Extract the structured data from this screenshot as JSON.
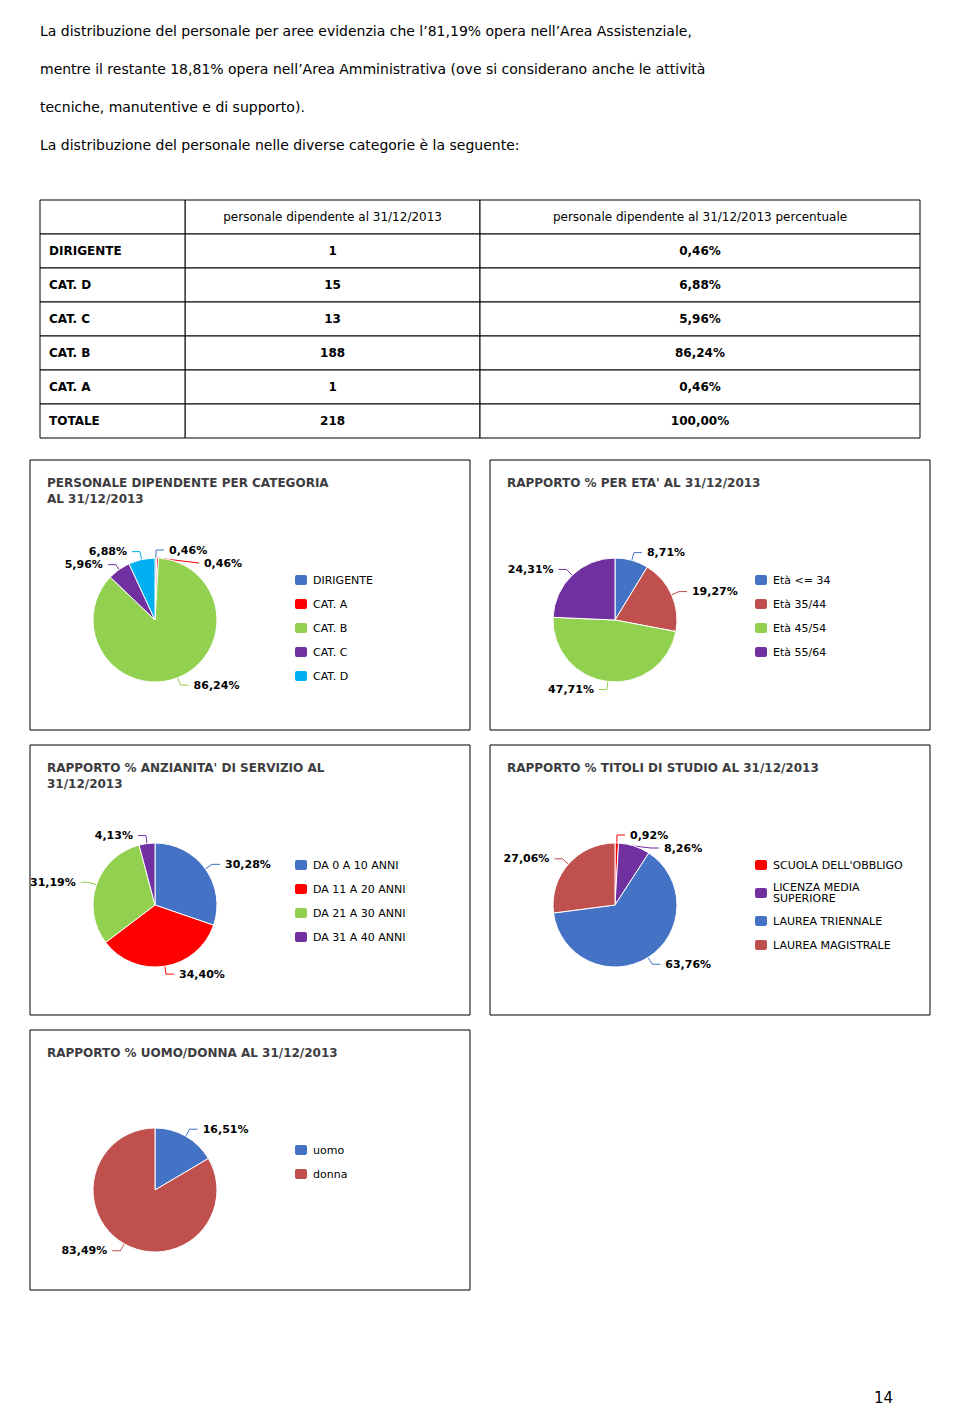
{
  "annotations": [
    "La distribuzione del personale per aree evidenzia che l’81,19% opera nell’Area Assistenziale,",
    "mentre il restante 18,81% opera nell’Area Amministrativa (ove si considerano anche le attività",
    "tecniche, manutentive e di supporto).",
    "La distribuzione del personale nelle diverse categorie è la seguente:"
  ],
  "table": {
    "columns": [
      null,
      "personale dipendente al 31/12/2013",
      "personale dipendente al 31/12/2013 percentuale"
    ],
    "rows": [
      [
        "DIRIGENTE",
        "1",
        "0,46%"
      ],
      [
        "CAT. D",
        "15",
        "6,88%"
      ],
      [
        "CAT. C",
        "13",
        "5,96%"
      ],
      [
        "CAT. B",
        "188",
        "86,24%"
      ],
      [
        "CAT. A",
        "1",
        "0,46%"
      ],
      [
        "TOTALE",
        "218",
        "100,00%"
      ]
    ]
  },
  "page_number": "14",
  "chart_data": [
    {
      "type": "pie",
      "title": "PERSONALE DIPENDENTE PER CATEGORIA\nAL 31/12/2013",
      "categories": [
        "DIRIGENTE",
        "CAT. A",
        "CAT. B",
        "CAT. C",
        "CAT. D"
      ],
      "values": [
        0.46,
        0.46,
        86.24,
        5.96,
        6.88
      ],
      "value_labels": [
        "0,46%",
        "0,46%",
        "86,24%",
        "5,96%",
        "6,88%"
      ],
      "colors": [
        "#4472C4",
        "#FF0000",
        "#92D050",
        "#7030A0",
        "#00B0F0"
      ],
      "legend": "right",
      "data_labels": true
    },
    {
      "type": "pie",
      "title": "RAPPORTO % PER ETA' AL 31/12/2013",
      "categories": [
        "Età <= 34",
        "Età 35/44",
        "Età 45/54",
        "Età 55/64"
      ],
      "values": [
        8.71,
        19.27,
        47.71,
        24.31
      ],
      "value_labels": [
        "8,71%",
        "19,27%",
        "47,71%",
        "24,31%"
      ],
      "colors": [
        "#4472C4",
        "#C0504D",
        "#92D050",
        "#7030A0"
      ],
      "legend": "right",
      "data_labels": true
    },
    {
      "type": "pie",
      "title": "RAPPORTO % ANZIANITA' DI SERVIZIO AL\n31/12/2013",
      "categories": [
        "DA 0 A 10 ANNI",
        "DA 11 A 20 ANNI",
        "DA 21 A 30 ANNI",
        "DA 31 A 40 ANNI"
      ],
      "values": [
        30.28,
        34.4,
        31.19,
        4.13
      ],
      "value_labels": [
        "30,28%",
        "34,40%",
        "31,19%",
        "4,13%"
      ],
      "colors": [
        "#4472C4",
        "#FF0000",
        "#92D050",
        "#7030A0"
      ],
      "legend": "right",
      "data_labels": true
    },
    {
      "type": "pie",
      "title": "RAPPORTO % TITOLI DI STUDIO AL 31/12/2013",
      "categories": [
        "SCUOLA DELL'OBBLIGO",
        "LICENZA MEDIA\nSUPERIORE",
        "LAUREA TRIENNALE",
        "LAUREA MAGISTRALE"
      ],
      "values": [
        0.92,
        8.26,
        63.76,
        27.06
      ],
      "value_labels": [
        "0,92%",
        "8,26%",
        "63,76%",
        "27,06%"
      ],
      "colors": [
        "#FF0000",
        "#7030A0",
        "#4472C4",
        "#C0504D"
      ],
      "legend": "right",
      "data_labels": true
    },
    {
      "type": "pie",
      "title": "RAPPORTO % UOMO/DONNA AL 31/12/2013",
      "categories": [
        "uomo",
        "donna"
      ],
      "values": [
        16.51,
        83.49
      ],
      "value_labels": [
        "16,51%",
        "83,49%"
      ],
      "colors": [
        "#4472C4",
        "#C0504D"
      ],
      "legend": "right",
      "data_labels": true
    }
  ]
}
